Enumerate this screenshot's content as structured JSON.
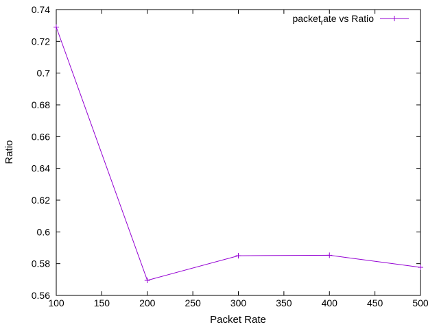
{
  "chart_data": {
    "type": "line",
    "title": "",
    "xlabel": "Packet Rate",
    "ylabel": "Ratio",
    "xlim": [
      100,
      500
    ],
    "ylim": [
      0.56,
      0.74
    ],
    "x_ticks": [
      "100",
      "150",
      "200",
      "250",
      "300",
      "350",
      "400",
      "450",
      "500"
    ],
    "y_ticks": [
      "0.56",
      "0.58",
      "0.6",
      "0.62",
      "0.64",
      "0.66",
      "0.68",
      "0.7",
      "0.72",
      "0.74"
    ],
    "grid": false,
    "legend_position": "top-right",
    "series": [
      {
        "name_parts": [
          "packet",
          "r",
          "ate vs Ratio"
        ],
        "color": "#9400d3",
        "marker": "plus",
        "x": [
          100,
          200,
          300,
          400,
          500
        ],
        "y": [
          0.729,
          0.5695,
          0.585,
          0.5853,
          0.5777
        ]
      }
    ]
  }
}
